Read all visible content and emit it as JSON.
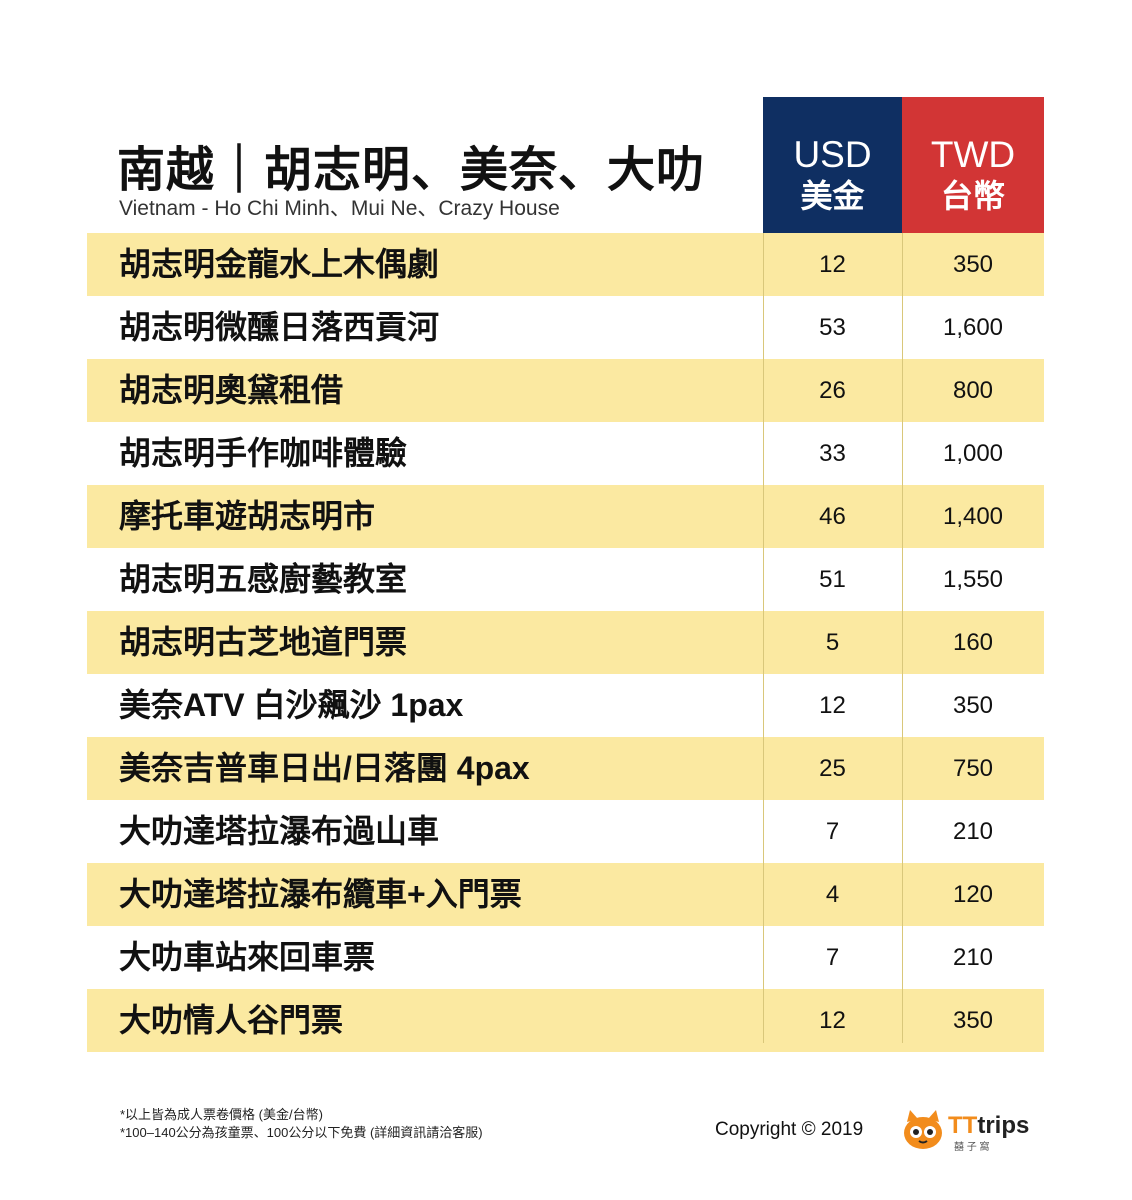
{
  "header": {
    "title": "南越｜胡志明、美奈、大叻",
    "subtitle": "Vietnam - Ho Chi Minh、Mui Ne、Crazy House",
    "usd_code": "USD",
    "usd_label": "美金",
    "twd_code": "TWD",
    "twd_label": "台幣"
  },
  "colors": {
    "usd_header": "#0f2f62",
    "twd_header": "#d23535",
    "row_highlight": "#fbe9a1"
  },
  "rows": [
    {
      "name": "胡志明金龍水上木偶劇",
      "usd": "12",
      "twd": "350"
    },
    {
      "name": "胡志明微醺日落西貢河",
      "usd": "53",
      "twd": "1,600"
    },
    {
      "name": "胡志明奧黛租借",
      "usd": "26",
      "twd": "800"
    },
    {
      "name": "胡志明手作咖啡體驗",
      "usd": "33",
      "twd": "1,000"
    },
    {
      "name": "摩托車遊胡志明市",
      "usd": "46",
      "twd": "1,400"
    },
    {
      "name": "胡志明五感廚藝教室",
      "usd": "51",
      "twd": "1,550"
    },
    {
      "name": "胡志明古芝地道門票",
      "usd": "5",
      "twd": "160"
    },
    {
      "name": "美奈ATV 白沙飆沙 1pax",
      "usd": "12",
      "twd": "350"
    },
    {
      "name": "美奈吉普車日出/日落團  4pax",
      "usd": "25",
      "twd": "750"
    },
    {
      "name": "大叻達塔拉瀑布過山車",
      "usd": "7",
      "twd": "210"
    },
    {
      "name": "大叻達塔拉瀑布纜車+入門票",
      "usd": "4",
      "twd": "120"
    },
    {
      "name": "大叻車站來回車票",
      "usd": "7",
      "twd": "210"
    },
    {
      "name": "大叻情人谷門票",
      "usd": "12",
      "twd": "350"
    }
  ],
  "footer": {
    "note1": "*以上皆為成人票卷價格 (美金/台幣)",
    "note2": "*100–140公分為孩童票、100公分以下免費 (詳細資訊請洽客服)",
    "copyright": "Copyright © 2019",
    "logo_tt": "TT",
    "logo_rest": "trips",
    "logo_sub": "囍 子 窩"
  }
}
